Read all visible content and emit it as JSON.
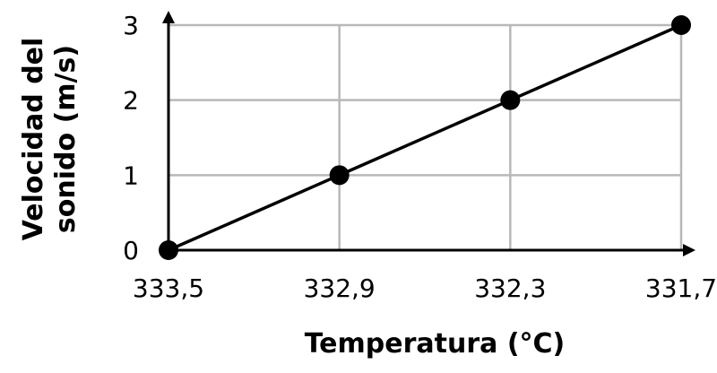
{
  "chart_data": {
    "type": "line",
    "title": "",
    "xlabel": "Temperatura (°C)",
    "ylabel": [
      "Velocidad del",
      "sonido (m/s)"
    ],
    "x_categories": [
      "333,5",
      "332,9",
      "332,3",
      "331,7"
    ],
    "y_ticks": [
      "0",
      "1",
      "2",
      "3"
    ],
    "ylim": [
      0,
      3
    ],
    "grid": true,
    "series": [
      {
        "values": [
          0,
          1,
          2,
          3
        ]
      }
    ],
    "colors": {
      "line": "#000000",
      "marker": "#000000",
      "grid": "#b8b8b8",
      "axis": "#000000"
    }
  }
}
